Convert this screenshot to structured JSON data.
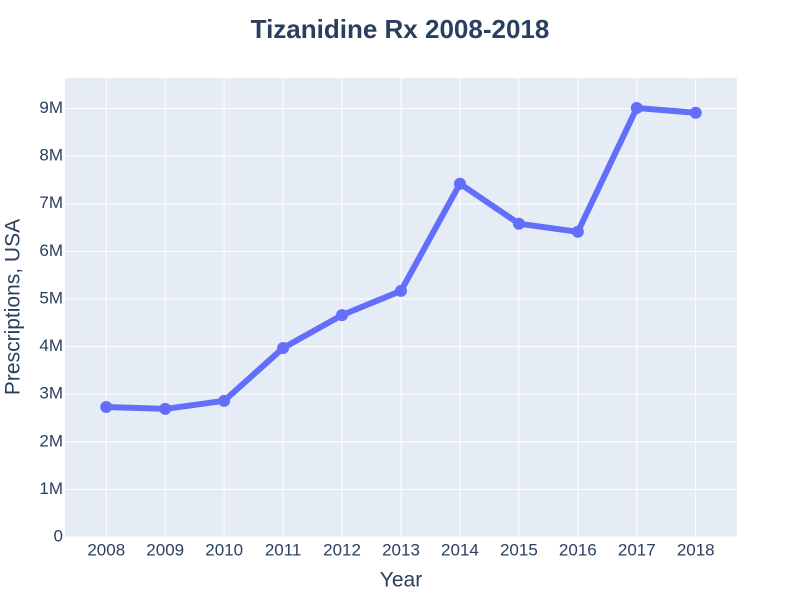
{
  "chart_data": {
    "type": "line",
    "title": "Tizanidine Rx 2008-2018",
    "x_label": "Year",
    "y_label": "Prescriptions, USA",
    "x": [
      2008,
      2009,
      2010,
      2011,
      2012,
      2013,
      2014,
      2015,
      2016,
      2017,
      2018
    ],
    "series": [
      {
        "name": "Prescriptions",
        "color": "#636efa",
        "values": [
          2730000,
          2690000,
          2860000,
          3970000,
          4660000,
          5170000,
          7420000,
          6580000,
          6410000,
          9010000,
          8910000
        ]
      }
    ],
    "xlim": [
      2007.3,
      2018.7
    ],
    "xticks": [
      2008,
      2009,
      2010,
      2011,
      2012,
      2013,
      2014,
      2015,
      2016,
      2017,
      2018
    ],
    "ylim": [
      0,
      9640000
    ],
    "yticks": [
      0,
      {
        "value": 1000000,
        "label": "1M"
      },
      {
        "value": 2000000,
        "label": "2M"
      },
      {
        "value": 3000000,
        "label": "3M"
      },
      {
        "value": 4000000,
        "label": "4M"
      },
      {
        "value": 5000000,
        "label": "5M"
      },
      {
        "value": 6000000,
        "label": "6M"
      },
      {
        "value": 7000000,
        "label": "7M"
      },
      {
        "value": 8000000,
        "label": "8M"
      },
      {
        "value": 9000000,
        "label": "9M"
      }
    ],
    "grid": true
  }
}
